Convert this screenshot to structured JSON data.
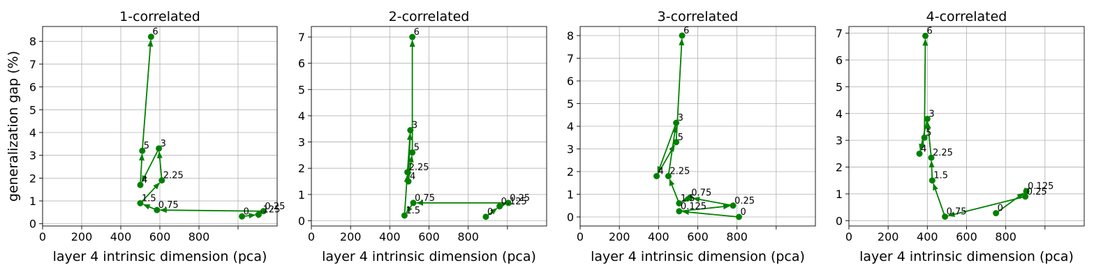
{
  "colors": {
    "series": "#008000"
  },
  "chart_data": [
    {
      "type": "line",
      "title": "1-correlated",
      "xlabel": "layer 4 intrinsic dimension (pca)",
      "ylabel": "generalization gap (%)",
      "xlim": [
        0,
        1200
      ],
      "ylim": [
        -0.1,
        8.65
      ],
      "xticks": [
        0,
        200,
        400,
        600,
        800
      ],
      "xtick_labels": [
        "0",
        "200",
        "400",
        "600",
        "800"
      ],
      "yticks": [
        0,
        1,
        2,
        3,
        4,
        5,
        6,
        7,
        8
      ],
      "ytick_labels": [
        "0",
        "1",
        "2",
        "3",
        "4",
        "5",
        "6",
        "7",
        "8"
      ],
      "grid": true,
      "points": [
        {
          "label": "0",
          "x": 1020,
          "y": 0.32
        },
        {
          "label": "0.125",
          "x": 1105,
          "y": 0.4
        },
        {
          "label": "0.25",
          "x": 1130,
          "y": 0.55
        },
        {
          "label": "0.75",
          "x": 585,
          "y": 0.6
        },
        {
          "label": "1.5",
          "x": 500,
          "y": 0.9
        },
        {
          "label": "2.25",
          "x": 610,
          "y": 1.9
        },
        {
          "label": "3",
          "x": 595,
          "y": 3.3
        },
        {
          "label": "4",
          "x": 500,
          "y": 1.7
        },
        {
          "label": "5",
          "x": 510,
          "y": 3.2
        },
        {
          "label": "6",
          "x": 555,
          "y": 8.2
        }
      ],
      "point_labels": [
        "0",
        ".125",
        "0.25",
        "0.75",
        "1.5",
        "2.25",
        "3",
        "4",
        "5",
        "6"
      ]
    },
    {
      "type": "line",
      "title": "2-correlated",
      "xlabel": "layer 4 intrinsic dimension (pca)",
      "ylabel": "",
      "xlim": [
        0,
        1200
      ],
      "ylim": [
        -0.2,
        7.4
      ],
      "xticks": [
        0,
        200,
        400,
        600,
        800
      ],
      "xtick_labels": [
        "0",
        "200",
        "400",
        "600",
        "800"
      ],
      "yticks": [
        0,
        1,
        2,
        3,
        4,
        5,
        6,
        7
      ],
      "ytick_labels": [
        "0",
        "1",
        "2",
        "3",
        "4",
        "5",
        "6",
        "7"
      ],
      "grid": true,
      "points": [
        {
          "label": "0",
          "x": 890,
          "y": 0.15
        },
        {
          "label": "0.125",
          "x": 960,
          "y": 0.55
        },
        {
          "label": "0.25",
          "x": 1005,
          "y": 0.68
        },
        {
          "label": "0.75",
          "x": 520,
          "y": 0.68
        },
        {
          "label": "1.5",
          "x": 475,
          "y": 0.2
        },
        {
          "label": "2.25",
          "x": 490,
          "y": 1.85
        },
        {
          "label": "3",
          "x": 505,
          "y": 3.45
        },
        {
          "label": "4",
          "x": 495,
          "y": 1.5
        },
        {
          "label": "5",
          "x": 515,
          "y": 2.6
        },
        {
          "label": "6",
          "x": 515,
          "y": 7.0
        }
      ],
      "point_labels": [
        "0",
        "0.125",
        "0.25",
        "0.75",
        "1.5",
        "2.25",
        "3",
        "4",
        "5",
        "6"
      ]
    },
    {
      "type": "line",
      "title": "3-correlated",
      "xlabel": "layer 4 intrinsic dimension (pca)",
      "ylabel": "",
      "xlim": [
        0,
        1200
      ],
      "ylim": [
        -0.4,
        8.4
      ],
      "xticks": [
        0,
        200,
        400,
        600,
        800
      ],
      "xtick_labels": [
        "0",
        "200",
        "400",
        "600",
        "800"
      ],
      "yticks": [
        0,
        1,
        2,
        3,
        4,
        5,
        6,
        7,
        8
      ],
      "ytick_labels": [
        "0",
        "1",
        "2",
        "3",
        "4",
        "5",
        "6",
        "7",
        "8"
      ],
      "grid": true,
      "points": [
        {
          "label": "0",
          "x": 810,
          "y": 0.0
        },
        {
          "label": "0.125",
          "x": 505,
          "y": 0.25
        },
        {
          "label": "0.25",
          "x": 780,
          "y": 0.5
        },
        {
          "label": "0.75",
          "x": 560,
          "y": 0.85
        },
        {
          "label": "1.5",
          "x": 505,
          "y": 0.6
        },
        {
          "label": "2.25",
          "x": 450,
          "y": 1.8
        },
        {
          "label": "3",
          "x": 490,
          "y": 4.15
        },
        {
          "label": "4",
          "x": 390,
          "y": 1.8
        },
        {
          "label": "5",
          "x": 490,
          "y": 3.3
        },
        {
          "label": "6",
          "x": 520,
          "y": 8.0
        }
      ],
      "point_labels": [
        "0",
        "0.125",
        "0.25",
        "0.75",
        "1.5",
        "2.25",
        "3",
        "4",
        "5",
        "6"
      ]
    },
    {
      "type": "line",
      "title": "4-correlated",
      "xlabel": "layer 4 intrinsic dimension (pca)",
      "ylabel": "",
      "xlim": [
        0,
        1200
      ],
      "ylim": [
        -0.2,
        7.25
      ],
      "xticks": [
        0,
        200,
        400,
        600,
        800
      ],
      "xtick_labels": [
        "0",
        "200",
        "400",
        "600",
        "800"
      ],
      "yticks": [
        0,
        1,
        2,
        3,
        4,
        5,
        6,
        7
      ],
      "ytick_labels": [
        "0",
        "1",
        "2",
        "3",
        "4",
        "5",
        "6",
        "7"
      ],
      "grid": true,
      "points": [
        {
          "label": "0",
          "x": 750,
          "y": 0.28
        },
        {
          "label": "0.125",
          "x": 905,
          "y": 1.1
        },
        {
          "label": "0.25",
          "x": 900,
          "y": 0.9
        },
        {
          "label": "0.75",
          "x": 490,
          "y": 0.15
        },
        {
          "label": "1.5",
          "x": 425,
          "y": 1.5
        },
        {
          "label": "2.25",
          "x": 420,
          "y": 2.35
        },
        {
          "label": "3",
          "x": 400,
          "y": 3.8
        },
        {
          "label": "4",
          "x": 360,
          "y": 2.5
        },
        {
          "label": "5",
          "x": 385,
          "y": 3.1
        },
        {
          "label": "6",
          "x": 390,
          "y": 6.9
        }
      ],
      "point_labels": [
        "0",
        "0.125",
        "0.25",
        "0.75",
        "1.5",
        "2.25",
        "3",
        "4",
        "5",
        "6"
      ]
    }
  ]
}
